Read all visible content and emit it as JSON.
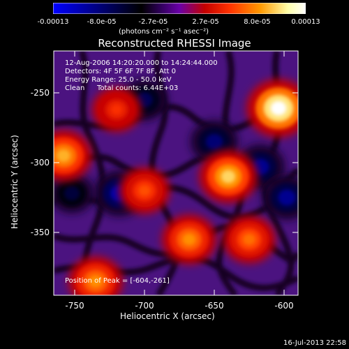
{
  "chart_data": {
    "type": "heatmap",
    "title": "Reconstructed RHESSI Image",
    "xlabel": "Heliocentric X (arcsec)",
    "ylabel": "Heliocentric Y (arcsec)",
    "xlim": [
      -765,
      -590
    ],
    "ylim": [
      -395,
      -220
    ],
    "x_ticks": [
      "-750",
      "-700",
      "-650",
      "-600"
    ],
    "x_tick_values": [
      -750,
      -700,
      -650,
      -600
    ],
    "y_ticks": [
      "-250",
      "-300",
      "-350"
    ],
    "y_tick_values": [
      -250,
      -300,
      -350
    ],
    "colorbar": {
      "units": "(photons cm⁻² s⁻¹ asec⁻²)",
      "tick_labels": [
        "-0.00013",
        "-8.0e-05",
        "-2.7e-05",
        "2.7e-05",
        "8.0e-05",
        "0.00013"
      ],
      "tick_values": [
        -0.00013,
        -8e-05,
        -2.7e-05,
        2.7e-05,
        8e-05,
        0.00013
      ],
      "range": [
        -0.00013,
        0.00013
      ],
      "colors": [
        "#0000ff",
        "#000000",
        "#2c0055",
        "#6a00a8",
        "#c40000",
        "#ff3300",
        "#ff9900",
        "#ffffaa",
        "#ffffff"
      ]
    },
    "annotations": {
      "time_range": "12-Aug-2006 14:20:20.000 to 14:24:44.000",
      "detectors": "Detectors: 4F 5F 6F 7F 8F, Att 0",
      "energy_range": "Energy Range: 25.0 - 50.0 keV",
      "method": "Clean",
      "total_counts": "Total counts: 6.44E+03",
      "peak_position": "Position of Peak = [-604,-261]"
    },
    "bright_sources": [
      {
        "x": -604,
        "y": -261,
        "value": 0.00013
      },
      {
        "x": -640,
        "y": -310,
        "value": 0.0001
      },
      {
        "x": -668,
        "y": -355,
        "value": 8e-05
      },
      {
        "x": -758,
        "y": -295,
        "value": 9e-05
      },
      {
        "x": -735,
        "y": -385,
        "value": 8e-05
      },
      {
        "x": -625,
        "y": -355,
        "value": 7e-05
      },
      {
        "x": -700,
        "y": -320,
        "value": 6e-05
      },
      {
        "x": -720,
        "y": -262,
        "value": 5e-05
      }
    ],
    "negative_sources": [
      {
        "x": -718,
        "y": -322,
        "value": -0.0001
      },
      {
        "x": -617,
        "y": -303,
        "value": -9e-05
      },
      {
        "x": -598,
        "y": -325,
        "value": -9e-05
      },
      {
        "x": -650,
        "y": -285,
        "value": -8e-05
      },
      {
        "x": -700,
        "y": -255,
        "value": -7e-05
      },
      {
        "x": -752,
        "y": -322,
        "value": -6e-05
      }
    ]
  },
  "footer": {
    "timestamp": "16-Jul-2013 22:58"
  }
}
